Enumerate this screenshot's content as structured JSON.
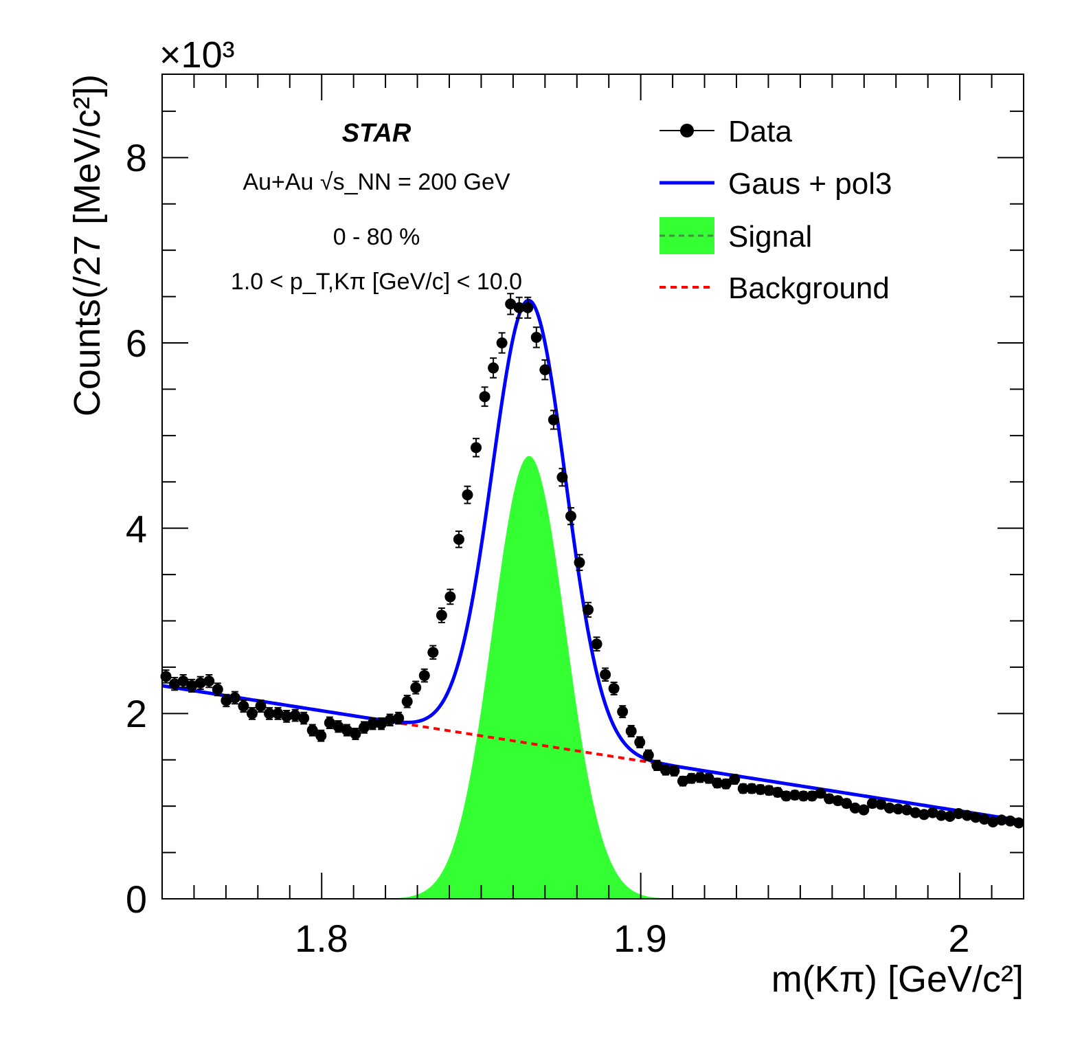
{
  "chart_data": {
    "type": "scatter",
    "xlim": [
      1.75,
      2.02
    ],
    "ylim": [
      0,
      8.9
    ],
    "x_ticks": [
      1.8,
      1.9,
      2.0
    ],
    "x_tick_labels": [
      "1.8",
      "1.9",
      "2"
    ],
    "y_ticks": [
      0,
      2,
      4,
      6,
      8
    ],
    "y_tick_labels": [
      "0",
      "2",
      "4",
      "6",
      "8"
    ],
    "y_multiplier": "×10³",
    "xlabel": "m(Kπ) [GeV/c²]",
    "ylabel": "Counts(/27 [MeV/c²])",
    "annotations": {
      "experiment": "STAR",
      "system": "Au+Au √s_NN = 200 GeV",
      "centrality": "0 - 80 %",
      "pt_range": "1.0 < p_T,Kπ [GeV/c] < 10.0"
    },
    "legend_position": "top-right",
    "legend": [
      {
        "label": "Data",
        "style": "marker-line",
        "color": "#000000"
      },
      {
        "label": "Gaus + pol3",
        "style": "line",
        "color": "#0000ff"
      },
      {
        "label": "Signal",
        "style": "fill",
        "color": "#33ff33"
      },
      {
        "label": "Background",
        "style": "dashed-line",
        "color": "#ff0000"
      }
    ],
    "data_series": {
      "name": "Data",
      "color": "#000000",
      "x": [
        1.7512,
        1.7539,
        1.7566,
        1.7593,
        1.762,
        1.7647,
        1.7674,
        1.7701,
        1.7728,
        1.7755,
        1.7782,
        1.7809,
        1.7836,
        1.7863,
        1.789,
        1.7917,
        1.7944,
        1.7971,
        1.7998,
        1.8025,
        1.8052,
        1.8079,
        1.8106,
        1.8133,
        1.816,
        1.8187,
        1.8214,
        1.8241,
        1.8268,
        1.8295,
        1.8322,
        1.8349,
        1.8376,
        1.8403,
        1.843,
        1.8457,
        1.8484,
        1.8511,
        1.8538,
        1.8565,
        1.8592,
        1.8619,
        1.8646,
        1.8673,
        1.87,
        1.8727,
        1.8754,
        1.8781,
        1.8808,
        1.8835,
        1.8862,
        1.8889,
        1.8916,
        1.8943,
        1.897,
        1.8997,
        1.9024,
        1.9051,
        1.9078,
        1.9105,
        1.9132,
        1.9159,
        1.9186,
        1.9213,
        1.924,
        1.9267,
        1.9294,
        1.9321,
        1.9348,
        1.9375,
        1.9402,
        1.9429,
        1.9456,
        1.9483,
        1.951,
        1.9537,
        1.9564,
        1.9591,
        1.9618,
        1.9645,
        1.9672,
        1.9699,
        1.9726,
        1.9753,
        1.978,
        1.9807,
        1.9834,
        1.9861,
        1.9888,
        1.9915,
        1.9942,
        1.9969,
        1.9996,
        2.0023,
        2.005,
        2.0077,
        2.0104,
        2.0131,
        2.0158,
        2.0185
      ],
      "y": [
        2.4,
        2.32,
        2.35,
        2.3,
        2.33,
        2.35,
        2.26,
        2.14,
        2.17,
        2.08,
        2.0,
        2.08,
        2.0,
        2.0,
        1.97,
        1.98,
        1.95,
        1.82,
        1.76,
        1.9,
        1.86,
        1.82,
        1.78,
        1.85,
        1.89,
        1.89,
        1.93,
        1.95,
        2.13,
        2.28,
        2.41,
        2.66,
        3.06,
        3.26,
        3.88,
        4.36,
        4.87,
        5.42,
        5.73,
        6.0,
        6.42,
        6.38,
        6.38,
        6.06,
        5.71,
        5.17,
        4.55,
        4.13,
        3.63,
        3.12,
        2.75,
        2.42,
        2.27,
        2.02,
        1.81,
        1.69,
        1.55,
        1.44,
        1.39,
        1.38,
        1.27,
        1.3,
        1.31,
        1.3,
        1.25,
        1.24,
        1.29,
        1.19,
        1.19,
        1.18,
        1.17,
        1.15,
        1.11,
        1.12,
        1.11,
        1.11,
        1.14,
        1.08,
        1.06,
        1.03,
        0.98,
        0.96,
        1.03,
        1.02,
        0.98,
        0.97,
        0.96,
        0.93,
        0.91,
        0.93,
        0.9,
        0.89,
        0.92,
        0.9,
        0.88,
        0.86,
        0.83,
        0.85,
        0.84,
        0.82
      ]
    },
    "fit_function": {
      "name": "Gaus + pol3",
      "color": "#0000ff",
      "gaussian": {
        "amplitude": 4.78,
        "mean": 1.865,
        "sigma": 0.0115
      },
      "background_line": {
        "x": [
          1.75,
          2.02
        ],
        "y": [
          2.3,
          0.84
        ]
      }
    },
    "signal": {
      "name": "Signal",
      "color": "#33ff33",
      "amplitude": 4.78,
      "mean": 1.865,
      "sigma": 0.0115
    },
    "background": {
      "name": "Background",
      "color": "#ff0000",
      "x": [
        1.75,
        2.02
      ],
      "y": [
        2.3,
        0.84
      ]
    }
  }
}
